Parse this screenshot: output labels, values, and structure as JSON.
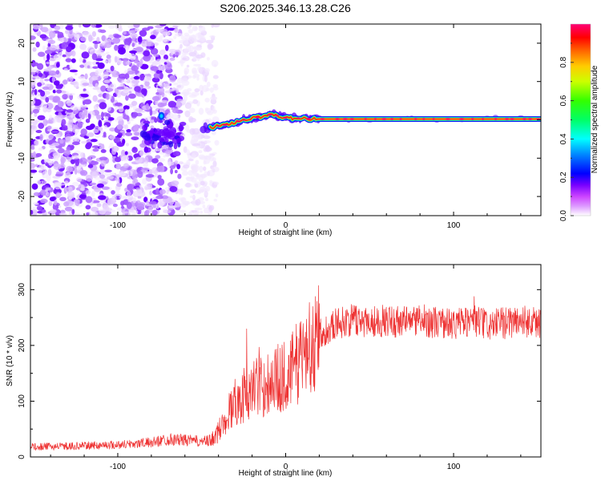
{
  "chart_data": [
    {
      "type": "heatmap",
      "title": "S206.2025.346.13.28.C26",
      "xlabel": "Height of straight line (km)",
      "ylabel": "Frequency (Hz)",
      "xlim": [
        -152,
        152
      ],
      "ylim": [
        -25,
        25
      ],
      "xticks": [
        -100,
        0,
        100
      ],
      "yticks": [
        20,
        10,
        0,
        -10,
        -20
      ],
      "colorbar": {
        "label": "Normalized spectral amplitude",
        "range": [
          0.0,
          1.0
        ],
        "ticks": [
          0.0,
          0.2,
          0.4,
          0.6,
          0.8
        ],
        "colormap": [
          "#ffffff",
          "#cc66ff",
          "#6600ff",
          "#0000ff",
          "#00ccff",
          "#00ff66",
          "#99ff00",
          "#ffff00",
          "#ff8800",
          "#ff0000",
          "#ff0066"
        ]
      },
      "noise_region_km": [
        -152,
        -47
      ],
      "line_start_km": -45,
      "line_frequency_hz": 0.2,
      "line_track": [
        {
          "x": -45,
          "f": -2.0
        },
        {
          "x": -35,
          "f": -1.2
        },
        {
          "x": -25,
          "f": 0.0
        },
        {
          "x": -15,
          "f": 0.8
        },
        {
          "x": -8,
          "f": 1.5
        },
        {
          "x": 0,
          "f": 0.5
        },
        {
          "x": 20,
          "f": 0.2
        },
        {
          "x": 152,
          "f": 0.2
        }
      ]
    },
    {
      "type": "line",
      "title": "",
      "xlabel": "Height of straight line (km)",
      "ylabel": "SNR (10 * v/v)",
      "xlim": [
        -152,
        152
      ],
      "ylim": [
        0,
        345
      ],
      "xticks": [
        -100,
        0,
        100
      ],
      "yticks": [
        0,
        100,
        200,
        300
      ],
      "series": [
        {
          "name": "SNR",
          "color": "#ee3333",
          "x": [
            -152,
            -120,
            -100,
            -80,
            -70,
            -60,
            -50,
            -45,
            -40,
            -35,
            -30,
            -25,
            -20,
            -15,
            -10,
            -5,
            0,
            5,
            10,
            15,
            20,
            30,
            40,
            60,
            80,
            95,
            100,
            110,
            115,
            120,
            130,
            140,
            152
          ],
          "values": [
            18,
            20,
            22,
            26,
            32,
            30,
            28,
            28,
            45,
            75,
            100,
            110,
            120,
            125,
            135,
            140,
            145,
            160,
            185,
            205,
            220,
            240,
            245,
            243,
            245,
            240,
            238,
            245,
            242,
            235,
            240,
            245,
            240
          ]
        }
      ]
    }
  ]
}
